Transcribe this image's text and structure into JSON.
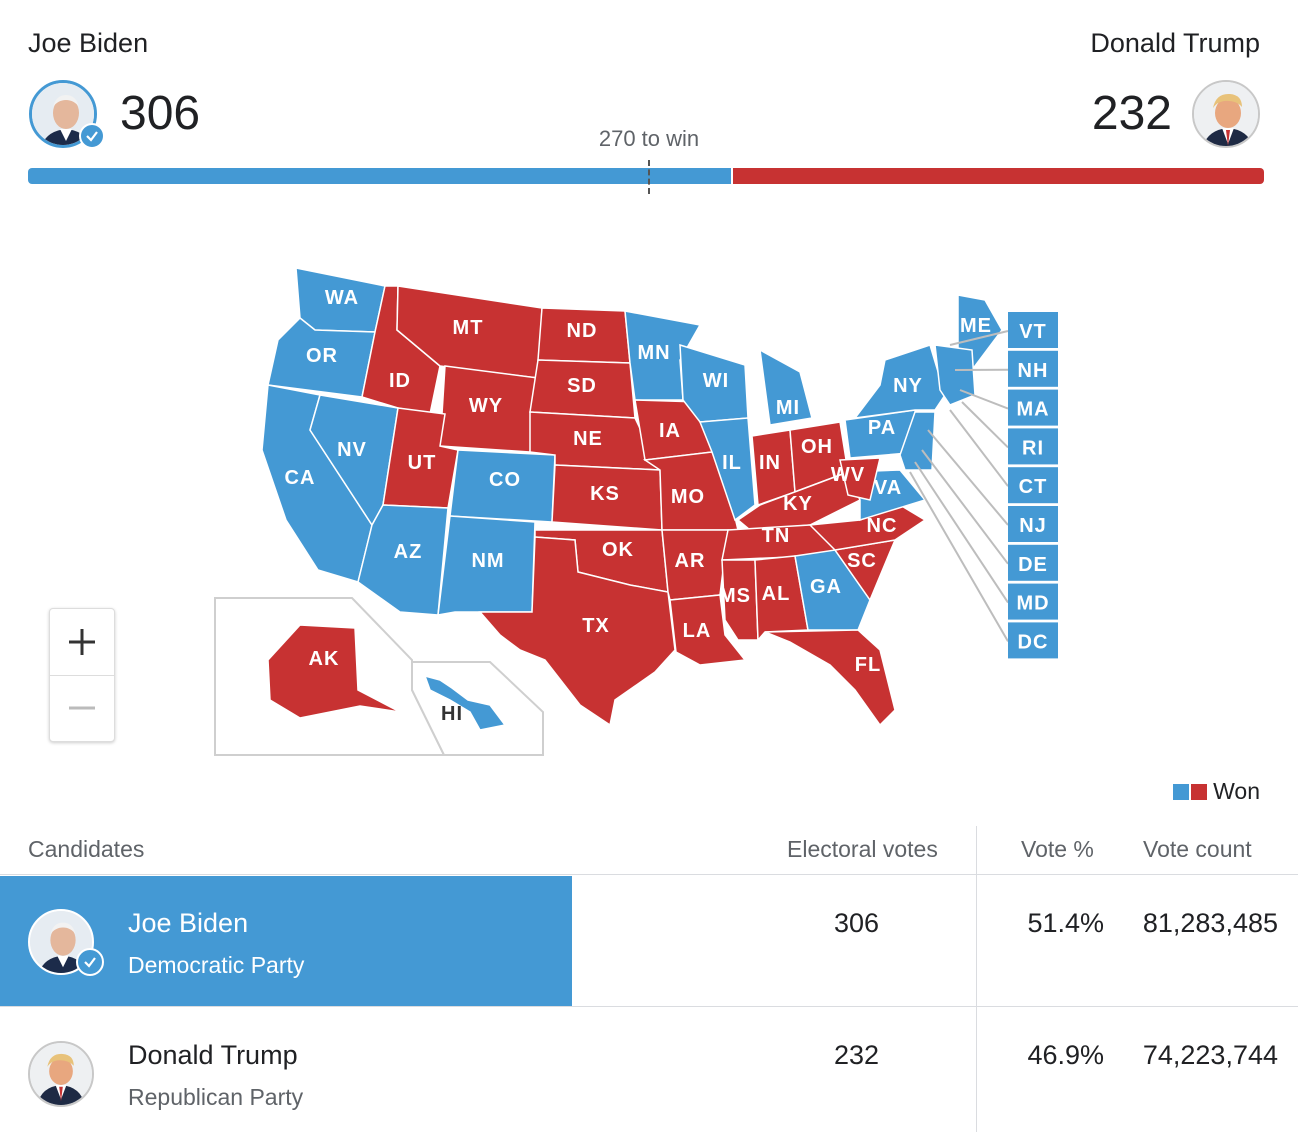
{
  "header": {
    "biden": {
      "name": "Joe Biden",
      "electoral_votes": "306"
    },
    "trump": {
      "name": "Donald Trump",
      "electoral_votes": "232"
    },
    "to_win": "270 to win",
    "progress": {
      "biden_fraction": 0.5688,
      "trump_fraction": 0.4312,
      "threshold_fraction": 0.5019
    }
  },
  "colors": {
    "democrat": "#4499d4",
    "republican": "#c73232",
    "winner_row": "#4499d4"
  },
  "map": {
    "states": [
      {
        "abbr": "WA",
        "party": "D"
      },
      {
        "abbr": "OR",
        "party": "D"
      },
      {
        "abbr": "CA",
        "party": "D"
      },
      {
        "abbr": "NV",
        "party": "D"
      },
      {
        "abbr": "ID",
        "party": "R"
      },
      {
        "abbr": "MT",
        "party": "R"
      },
      {
        "abbr": "WY",
        "party": "R"
      },
      {
        "abbr": "UT",
        "party": "R"
      },
      {
        "abbr": "AZ",
        "party": "D"
      },
      {
        "abbr": "CO",
        "party": "D"
      },
      {
        "abbr": "NM",
        "party": "D"
      },
      {
        "abbr": "ND",
        "party": "R"
      },
      {
        "abbr": "SD",
        "party": "R"
      },
      {
        "abbr": "NE",
        "party": "R"
      },
      {
        "abbr": "KS",
        "party": "R"
      },
      {
        "abbr": "OK",
        "party": "R"
      },
      {
        "abbr": "TX",
        "party": "R"
      },
      {
        "abbr": "MN",
        "party": "D"
      },
      {
        "abbr": "IA",
        "party": "R"
      },
      {
        "abbr": "MO",
        "party": "R"
      },
      {
        "abbr": "AR",
        "party": "R"
      },
      {
        "abbr": "LA",
        "party": "R"
      },
      {
        "abbr": "WI",
        "party": "D"
      },
      {
        "abbr": "IL",
        "party": "D"
      },
      {
        "abbr": "MI",
        "party": "D"
      },
      {
        "abbr": "IN",
        "party": "R"
      },
      {
        "abbr": "OH",
        "party": "R"
      },
      {
        "abbr": "KY",
        "party": "R"
      },
      {
        "abbr": "TN",
        "party": "R"
      },
      {
        "abbr": "MS",
        "party": "R"
      },
      {
        "abbr": "AL",
        "party": "R"
      },
      {
        "abbr": "GA",
        "party": "D"
      },
      {
        "abbr": "FL",
        "party": "R"
      },
      {
        "abbr": "SC",
        "party": "R"
      },
      {
        "abbr": "NC",
        "party": "R"
      },
      {
        "abbr": "VA",
        "party": "D"
      },
      {
        "abbr": "WV",
        "party": "R"
      },
      {
        "abbr": "PA",
        "party": "D"
      },
      {
        "abbr": "NY",
        "party": "D"
      },
      {
        "abbr": "ME",
        "party": "D"
      },
      {
        "abbr": "AK",
        "party": "R"
      },
      {
        "abbr": "HI",
        "party": "D"
      }
    ],
    "callouts": [
      "VT",
      "NH",
      "MA",
      "RI",
      "CT",
      "NJ",
      "DE",
      "MD",
      "DC"
    ]
  },
  "zoom": {
    "in_icon": "plus-icon",
    "out_icon": "minus-icon"
  },
  "legend": {
    "label": "Won"
  },
  "table": {
    "headers": {
      "candidates": "Candidates",
      "electoral": "Electoral votes",
      "pct": "Vote %",
      "count": "Vote count"
    },
    "rows": [
      {
        "name": "Joe Biden",
        "party": "Democratic Party",
        "electoral": "306",
        "pct": "51.4%",
        "count": "81,283,485",
        "winner": true
      },
      {
        "name": "Donald Trump",
        "party": "Republican Party",
        "electoral": "232",
        "pct": "46.9%",
        "count": "74,223,744",
        "winner": false
      }
    ]
  }
}
